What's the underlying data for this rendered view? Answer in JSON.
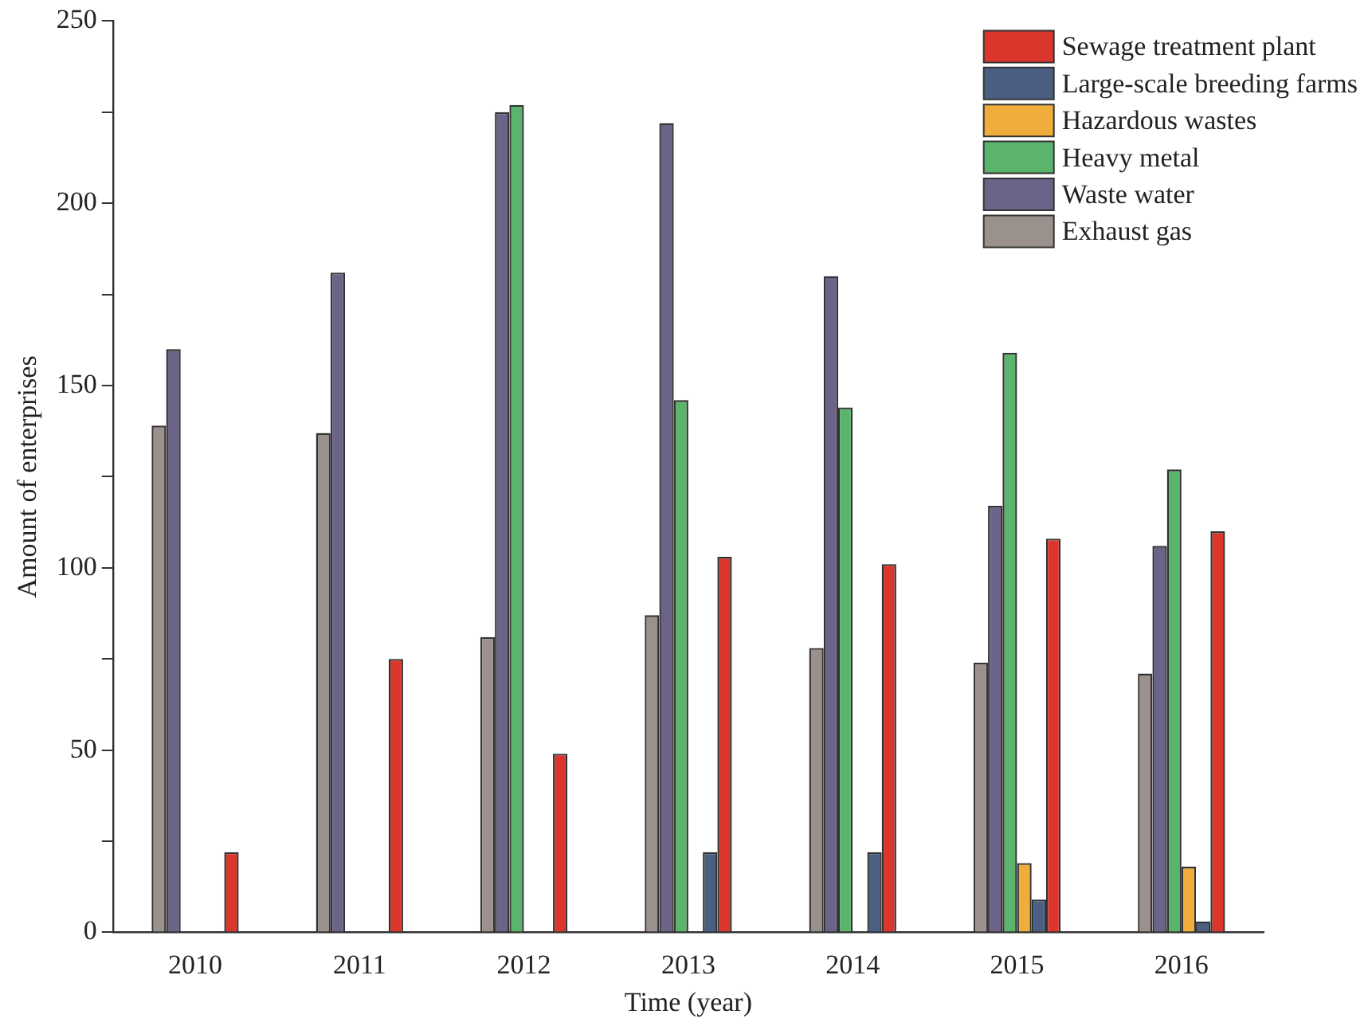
{
  "chart_data": {
    "type": "bar",
    "xlabel": "Time (year)",
    "ylabel": "Amount of enterprises",
    "categories": [
      "2010",
      "2011",
      "2012",
      "2013",
      "2014",
      "2015",
      "2016"
    ],
    "series": [
      {
        "name": "Exhaust gas",
        "color": "#9a908c",
        "values": [
          139,
          137,
          81,
          87,
          78,
          74,
          71
        ]
      },
      {
        "name": "Waste water",
        "color": "#6c6488",
        "values": [
          160,
          181,
          225,
          222,
          180,
          117,
          106
        ]
      },
      {
        "name": "Heavy metal",
        "color": "#5bb46c",
        "values": [
          null,
          null,
          227,
          146,
          144,
          159,
          127
        ]
      },
      {
        "name": "Hazardous wastes",
        "color": "#f0ad3c",
        "values": [
          null,
          null,
          null,
          null,
          null,
          19,
          18
        ]
      },
      {
        "name": "Large-scale breeding farms",
        "color": "#4a5f82",
        "values": [
          null,
          null,
          null,
          22,
          22,
          9,
          3
        ]
      },
      {
        "name": "Sewage treatment plant",
        "color": "#da362c",
        "values": [
          22,
          75,
          49,
          103,
          101,
          108,
          110
        ]
      }
    ],
    "ylim": [
      0,
      250
    ],
    "yticks": [
      0,
      {
        "value": 25,
        "label": null
      },
      50,
      {
        "value": 75,
        "label": null
      },
      100,
      {
        "value": 125,
        "label": null
      },
      150,
      {
        "value": 175,
        "label": null
      },
      200,
      {
        "value": 225,
        "label": null
      },
      250
    ],
    "grid": false,
    "legend": "top right"
  }
}
